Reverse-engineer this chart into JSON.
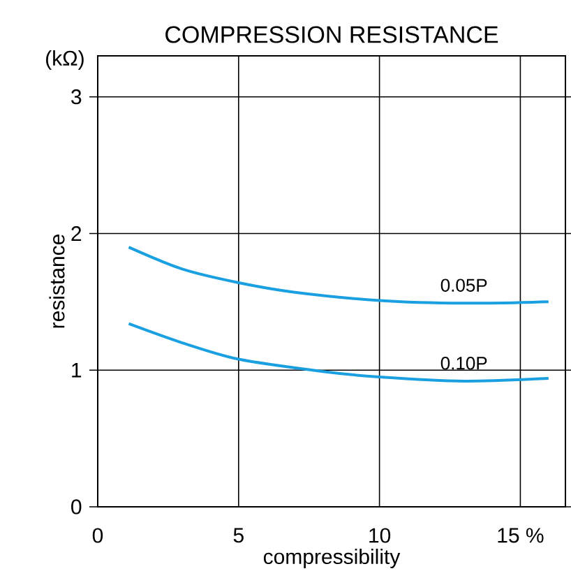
{
  "chart_data": {
    "type": "line",
    "title": "COMPRESSION RESISTANCE",
    "xlabel": "compressibility",
    "ylabel": "resistance",
    "annotations": [
      "(kΩ)"
    ],
    "xlim": [
      0,
      16.6
    ],
    "ylim": [
      0,
      3.3
    ],
    "xticks": [
      0,
      5,
      10,
      {
        "value": 15,
        "label": "15 %"
      }
    ],
    "yticks": [
      0,
      1,
      2,
      3
    ],
    "grid": true,
    "marker": "none",
    "line_style": "solid",
    "series": [
      {
        "name": "0.05P",
        "color": "#1aa0e0",
        "x": [
          1.1,
          3,
          5,
          7,
          10,
          13,
          16
        ],
        "values": [
          1.9,
          1.74,
          1.64,
          1.57,
          1.51,
          1.49,
          1.5
        ]
      },
      {
        "name": "0.10P",
        "color": "#1aa0e0",
        "x": [
          1.1,
          3,
          5,
          8,
          10,
          13,
          16
        ],
        "values": [
          1.34,
          1.2,
          1.08,
          0.99,
          0.95,
          0.92,
          0.94
        ]
      }
    ]
  }
}
